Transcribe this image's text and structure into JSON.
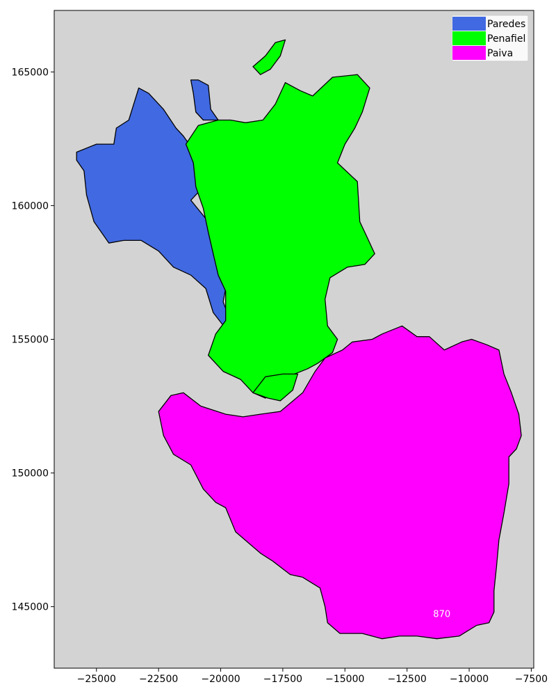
{
  "chart_data": {
    "type": "choropleth-map",
    "background": "#d3d3d3",
    "xlim": [
      -26700,
      -7400
    ],
    "ylim": [
      142700,
      167300
    ],
    "x_ticks": [
      -25000,
      -22500,
      -20000,
      -17500,
      -15000,
      -12500,
      -10000,
      -7500
    ],
    "x_tick_labels": [
      "−25000",
      "−22500",
      "−20000",
      "−17500",
      "−15000",
      "−12500",
      "−10000",
      "−7500"
    ],
    "y_ticks": [
      145000,
      150000,
      155000,
      160000,
      165000
    ],
    "y_tick_labels": [
      "145000",
      "150000",
      "155000",
      "160000",
      "165000"
    ],
    "legend_placement": "top-right",
    "legend": [
      {
        "label": "Paredes",
        "color": "#4169e1"
      },
      {
        "label": "Penafiel",
        "color": "#00ff00"
      },
      {
        "label": "Paiva",
        "color": "#ff00ff"
      }
    ],
    "regions": [
      {
        "name": "Paredes",
        "color": "#4169e1",
        "polygon": [
          [
            -25800,
            162000
          ],
          [
            -25000,
            162300
          ],
          [
            -24300,
            162300
          ],
          [
            -24200,
            162900
          ],
          [
            -23700,
            163200
          ],
          [
            -23300,
            164400
          ],
          [
            -22900,
            164200
          ],
          [
            -22300,
            163600
          ],
          [
            -21800,
            162900
          ],
          [
            -21500,
            162600
          ],
          [
            -20900,
            161800
          ],
          [
            -20700,
            161300
          ],
          [
            -20800,
            160600
          ],
          [
            -21200,
            160200
          ],
          [
            -20500,
            159400
          ],
          [
            -20300,
            158800
          ],
          [
            -20200,
            158200
          ],
          [
            -20100,
            157500
          ],
          [
            -19800,
            156900
          ],
          [
            -19900,
            156400
          ],
          [
            -19700,
            155900
          ],
          [
            -19800,
            155400
          ],
          [
            -20300,
            156000
          ],
          [
            -20600,
            156900
          ],
          [
            -21200,
            157400
          ],
          [
            -21900,
            157700
          ],
          [
            -22500,
            158300
          ],
          [
            -23200,
            158700
          ],
          [
            -23900,
            158700
          ],
          [
            -24500,
            158600
          ],
          [
            -24800,
            159000
          ],
          [
            -25100,
            159400
          ],
          [
            -25400,
            160400
          ],
          [
            -25500,
            161300
          ],
          [
            -25800,
            161700
          ]
        ]
      },
      {
        "name": "Paredes",
        "color": "#4169e1",
        "polygon": [
          [
            -21200,
            164700
          ],
          [
            -20900,
            164700
          ],
          [
            -20500,
            164500
          ],
          [
            -20400,
            163600
          ],
          [
            -20100,
            163200
          ],
          [
            -20700,
            163200
          ],
          [
            -21000,
            163500
          ],
          [
            -21100,
            164200
          ]
        ]
      },
      {
        "name": "Penafiel",
        "color": "#00ff00",
        "polygon": [
          [
            -21400,
            162300
          ],
          [
            -20900,
            163000
          ],
          [
            -20100,
            163200
          ],
          [
            -19600,
            163200
          ],
          [
            -19000,
            163100
          ],
          [
            -18300,
            163200
          ],
          [
            -17800,
            163800
          ],
          [
            -17400,
            164600
          ],
          [
            -16800,
            164300
          ],
          [
            -16300,
            164100
          ],
          [
            -15500,
            164800
          ],
          [
            -14500,
            164900
          ],
          [
            -14000,
            164400
          ],
          [
            -14300,
            163500
          ],
          [
            -14600,
            162900
          ],
          [
            -15000,
            162300
          ],
          [
            -15300,
            161600
          ],
          [
            -14500,
            160900
          ],
          [
            -14400,
            159400
          ],
          [
            -14100,
            158800
          ],
          [
            -13800,
            158200
          ],
          [
            -14200,
            157800
          ],
          [
            -14900,
            157700
          ],
          [
            -15600,
            157300
          ],
          [
            -15800,
            156500
          ],
          [
            -15700,
            155500
          ],
          [
            -15300,
            155000
          ],
          [
            -15500,
            154500
          ],
          [
            -16100,
            154100
          ],
          [
            -16500,
            153900
          ],
          [
            -17300,
            153600
          ],
          [
            -17900,
            153100
          ],
          [
            -18200,
            152800
          ],
          [
            -18700,
            153000
          ],
          [
            -19200,
            153500
          ],
          [
            -19900,
            153800
          ],
          [
            -20500,
            154400
          ],
          [
            -20200,
            155200
          ],
          [
            -19800,
            155700
          ],
          [
            -19800,
            156800
          ],
          [
            -20100,
            157400
          ],
          [
            -20300,
            158200
          ],
          [
            -20500,
            159000
          ],
          [
            -20700,
            159900
          ],
          [
            -21000,
            160700
          ],
          [
            -21100,
            161600
          ]
        ]
      },
      {
        "name": "Penafiel",
        "color": "#00ff00",
        "polygon": [
          [
            -18700,
            165200
          ],
          [
            -18200,
            165600
          ],
          [
            -17800,
            166100
          ],
          [
            -17400,
            166200
          ],
          [
            -17600,
            165600
          ],
          [
            -18000,
            165100
          ],
          [
            -18400,
            164900
          ]
        ]
      },
      {
        "name": "Penafiel",
        "color": "#00ff00",
        "polygon": [
          [
            -18700,
            153000
          ],
          [
            -18100,
            152800
          ],
          [
            -17600,
            152700
          ],
          [
            -17100,
            153100
          ],
          [
            -16900,
            153700
          ],
          [
            -17500,
            153700
          ],
          [
            -18200,
            153600
          ]
        ]
      },
      {
        "name": "Paiva",
        "color": "#ff00ff",
        "polygon": [
          [
            -15800,
            154300
          ],
          [
            -15100,
            154600
          ],
          [
            -14700,
            154900
          ],
          [
            -13900,
            155000
          ],
          [
            -13500,
            155200
          ],
          [
            -12700,
            155500
          ],
          [
            -12100,
            155100
          ],
          [
            -11600,
            155100
          ],
          [
            -11000,
            154600
          ],
          [
            -10300,
            154900
          ],
          [
            -9900,
            155000
          ],
          [
            -9300,
            154800
          ],
          [
            -8800,
            154600
          ],
          [
            -8600,
            153700
          ],
          [
            -8300,
            153000
          ],
          [
            -8000,
            152200
          ],
          [
            -7900,
            151400
          ],
          [
            -8100,
            150900
          ],
          [
            -8400,
            150600
          ],
          [
            -8400,
            149600
          ],
          [
            -8600,
            148500
          ],
          [
            -8800,
            147500
          ],
          [
            -8900,
            146500
          ],
          [
            -9000,
            145600
          ],
          [
            -9000,
            144800
          ],
          [
            -9200,
            144400
          ],
          [
            -9700,
            144300
          ],
          [
            -10400,
            143900
          ],
          [
            -11300,
            143800
          ],
          [
            -12100,
            143900
          ],
          [
            -12800,
            143900
          ],
          [
            -13500,
            143800
          ],
          [
            -14300,
            144000
          ],
          [
            -15200,
            144000
          ],
          [
            -15700,
            144400
          ],
          [
            -15800,
            145000
          ],
          [
            -16000,
            145700
          ],
          [
            -16700,
            146100
          ],
          [
            -17200,
            146200
          ],
          [
            -17900,
            146700
          ],
          [
            -18400,
            147000
          ],
          [
            -18900,
            147400
          ],
          [
            -19400,
            147800
          ],
          [
            -19800,
            148700
          ],
          [
            -20200,
            148900
          ],
          [
            -20700,
            149400
          ],
          [
            -21200,
            150300
          ],
          [
            -21900,
            150700
          ],
          [
            -22300,
            151400
          ],
          [
            -22500,
            152300
          ],
          [
            -22000,
            152900
          ],
          [
            -21500,
            153000
          ],
          [
            -20800,
            152500
          ],
          [
            -19800,
            152200
          ],
          [
            -19100,
            152100
          ],
          [
            -18400,
            152200
          ],
          [
            -17600,
            152300
          ],
          [
            -16700,
            153000
          ],
          [
            -16200,
            153800
          ]
        ]
      }
    ],
    "annotations": [
      {
        "text": "870",
        "x": -11100,
        "y": 144700,
        "color": "#ffffff"
      }
    ]
  }
}
